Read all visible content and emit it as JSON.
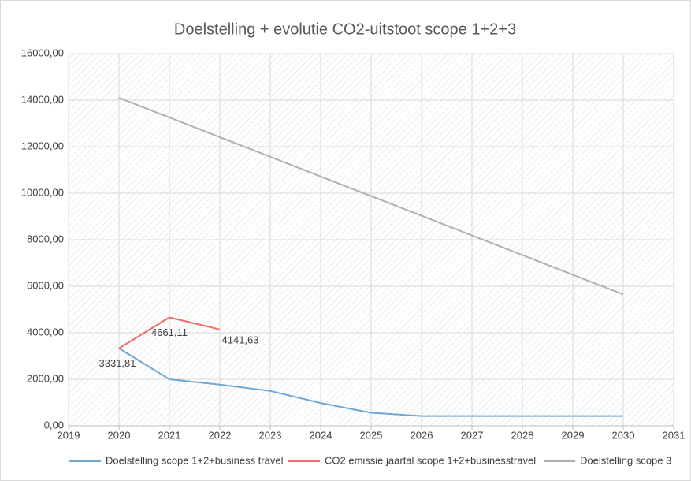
{
  "chart_data": {
    "type": "line",
    "title": "Doelstelling + evolutie CO2-uitstoot scope 1+2+3",
    "x": [
      2020,
      2021,
      2022,
      2023,
      2024,
      2025,
      2026,
      2027,
      2028,
      2029,
      2030
    ],
    "series": [
      {
        "name": "Doelstelling scope 1+2+business travel",
        "color": "#6fa8d6",
        "values": [
          3331.81,
          2000,
          1770,
          1500,
          980,
          560,
          420,
          420,
          420,
          420,
          420
        ]
      },
      {
        "name": "CO2 emissie jaartal scope 1+2+businesstravel",
        "color": "#f26b6b",
        "values": [
          3331.81,
          4661.11,
          4141.63,
          null,
          null,
          null,
          null,
          null,
          null,
          null,
          null
        ],
        "value_labels": [
          "3331,81",
          "4661,11",
          "4141,63",
          null,
          null,
          null,
          null,
          null,
          null,
          null,
          null
        ]
      },
      {
        "name": "Doelstelling scope 3",
        "color": "#b0b0b0",
        "values": [
          14100,
          13255,
          12410,
          11565,
          10720,
          9875,
          9030,
          8185,
          7340,
          6495,
          5650
        ]
      }
    ],
    "xlim": [
      2019,
      2031
    ],
    "xticks": [
      2019,
      2020,
      2021,
      2022,
      2023,
      2024,
      2025,
      2026,
      2027,
      2028,
      2029,
      2030,
      2031
    ],
    "ylim": [
      0,
      16000
    ],
    "yticks": [
      {
        "value": 0,
        "label": "0,00"
      },
      {
        "value": 2000,
        "label": "2000,00"
      },
      {
        "value": 4000,
        "label": "4000,00"
      },
      {
        "value": 6000,
        "label": "6000,00"
      },
      {
        "value": 8000,
        "label": "8000,00"
      },
      {
        "value": 10000,
        "label": "10000,00"
      },
      {
        "value": 12000,
        "label": "12000,00"
      },
      {
        "value": 14000,
        "label": "14000,00"
      },
      {
        "value": 16000,
        "label": "16000,00"
      }
    ],
    "grid": true,
    "legend": "bottom"
  }
}
